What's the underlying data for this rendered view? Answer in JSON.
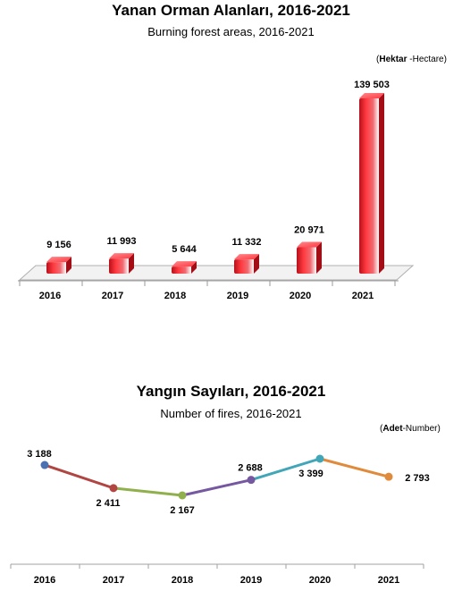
{
  "chart_data": [
    {
      "type": "bar",
      "title": "Yanan Orman Alanları, 2016-2021",
      "subtitle": "Burning forest areas, 2016-2021",
      "unit_tr": "Hektar",
      "unit_en": "-Hectare",
      "categories": [
        "2016",
        "2017",
        "2018",
        "2019",
        "2020",
        "2021"
      ],
      "values": [
        9156,
        11993,
        5644,
        11332,
        20971,
        139503
      ],
      "value_labels": [
        "9 156",
        "11 993",
        "5 644",
        "11 332",
        "20 971",
        "139 503"
      ],
      "ylim": [
        0,
        139503
      ],
      "bar_color": "#e8202a"
    },
    {
      "type": "line",
      "title": "Yangın Sayıları, 2016-2021",
      "subtitle": "Number of fires, 2016-2021",
      "unit_tr": "Adet",
      "unit_en": "-Number",
      "categories": [
        "2016",
        "2017",
        "2018",
        "2019",
        "2020",
        "2021"
      ],
      "values": [
        3188,
        2411,
        2167,
        2688,
        3399,
        2793
      ],
      "value_labels": [
        "3 188",
        "2 411",
        "2 167",
        "2 688",
        "3 399",
        "2 793"
      ],
      "point_colors": [
        "#4a72b0",
        "#b04542",
        "#8fb04c",
        "#7558a0",
        "#40a6b8",
        "#e08a3c"
      ],
      "segment_colors": [
        "#b04542",
        "#8fb04c",
        "#7558a0",
        "#40a6b8",
        "#e08a3c"
      ]
    }
  ]
}
